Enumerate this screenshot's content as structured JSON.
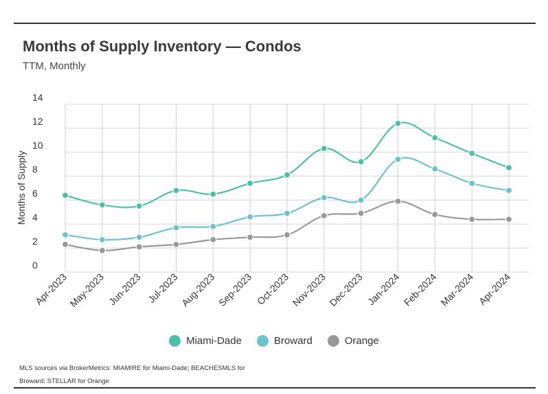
{
  "title": "Months of Supply Inventory — Condos",
  "subtitle": "TTM, Monthly",
  "source_note": "MLS sources via BrokerMetrics: MIAMIRE for Miami-Dade; BEACHESMLS for Broward; STELLAR for Orange",
  "chart_data": {
    "type": "line",
    "ylabel": "Months of Supply",
    "ylim": [
      0,
      14
    ],
    "yticks": [
      0,
      2,
      4,
      6,
      8,
      10,
      12,
      14
    ],
    "grid": true,
    "legend_position": "bottom",
    "categories": [
      "Apr-2023",
      "May-2023",
      "Jun-2023",
      "Jul-2023",
      "Aug-2023",
      "Sep-2023",
      "Oct-2023",
      "Nov-2023",
      "Dec-2023",
      "Jan-2024",
      "Feb-2024",
      "Mar-2024",
      "Apr-2024"
    ],
    "series": [
      {
        "name": "Miami-Dade",
        "color": "#4dbfa8",
        "values": [
          6.4,
          5.6,
          5.5,
          6.8,
          6.5,
          7.4,
          8.1,
          10.3,
          9.2,
          12.4,
          11.2,
          9.9,
          8.7
        ]
      },
      {
        "name": "Broward",
        "color": "#6cc3cc",
        "values": [
          3.1,
          2.7,
          2.9,
          3.7,
          3.8,
          4.6,
          4.9,
          6.2,
          6.0,
          9.4,
          8.6,
          7.4,
          6.8
        ]
      },
      {
        "name": "Orange",
        "color": "#999999",
        "values": [
          2.3,
          1.8,
          2.1,
          2.3,
          2.7,
          2.9,
          3.1,
          4.7,
          4.9,
          5.9,
          4.8,
          4.4,
          4.4
        ]
      }
    ]
  }
}
